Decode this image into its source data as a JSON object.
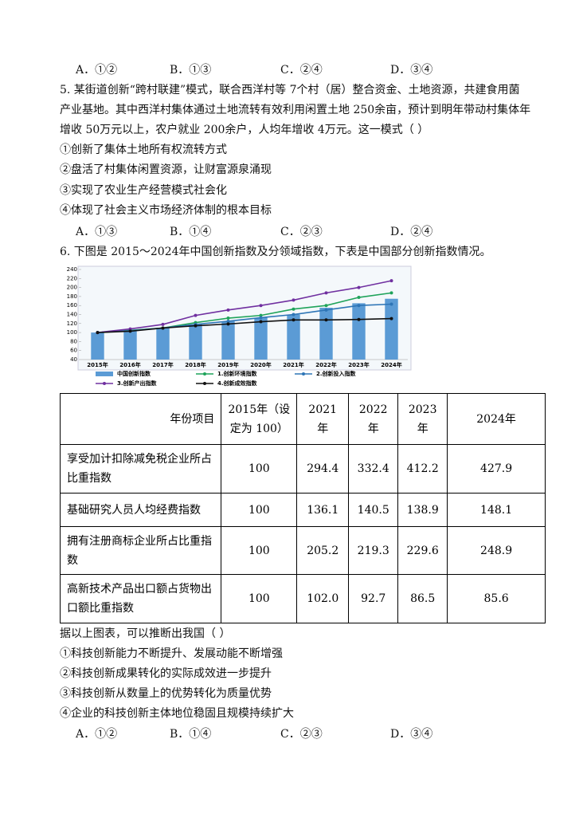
{
  "q4": {
    "options": [
      "A．①②",
      "B．①③",
      "C．②④",
      "D．③④"
    ]
  },
  "q5": {
    "stem_lines": [
      "5.  某街道创新“跨村联建”模式，联合西洋村等 7个村（居）整合资金、土地资源，共建食用菌",
      "产业基地。其中西洋村集体通过土地流转有效利用闲置土地 250余亩，预计到明年带动村集体年",
      "增收 50万元以上，农户就业 200余户，人均年增收 4万元。这一模式（   ）"
    ],
    "items": [
      "①创新了集体土地所有权流转方式",
      "②盘活了村集体闲置资源，让财富源泉涌现",
      "③实现了农业生产经营模式社会化",
      "④体现了社会主义市场经济体制的根本目标"
    ],
    "options": [
      "A．①③",
      "B．①④",
      "C．②③",
      "D．②④"
    ]
  },
  "q6": {
    "stem": "6.  下图是 2015～2024年中国创新指数及分领域指数，下表是中国部分创新指数情况。",
    "chart": {
      "type": "bar-line",
      "categories": [
        "2015年",
        "2016年",
        "2017年",
        "2018年",
        "2019年",
        "2020年",
        "2021年",
        "2022年",
        "2023年",
        "2024年"
      ],
      "ylim": [
        40,
        240
      ],
      "yticks": [
        40,
        60,
        80,
        100,
        120,
        140,
        160,
        180,
        200,
        220,
        240
      ],
      "series": [
        {
          "name": "中国创新指数",
          "kind": "bar",
          "color": "#5b9bd5",
          "values": [
            100,
            105,
            110,
            118,
            125,
            133,
            140,
            155,
            165,
            175
          ]
        },
        {
          "name": "1.创新环境指数",
          "kind": "line",
          "color": "#1fa35a",
          "values": [
            100,
            105,
            110,
            122,
            132,
            138,
            152,
            160,
            178,
            188
          ]
        },
        {
          "name": "2.创新投入指数",
          "kind": "line",
          "color": "#2e75b6",
          "values": [
            100,
            104,
            110,
            118,
            125,
            133,
            140,
            150,
            160,
            163
          ]
        },
        {
          "name": "3.创新产出指数",
          "kind": "line",
          "color": "#7030a0",
          "values": [
            100,
            108,
            118,
            138,
            150,
            160,
            172,
            188,
            200,
            215
          ]
        },
        {
          "name": "4.创新成效指数",
          "kind": "line",
          "color": "#111111",
          "values": [
            100,
            103,
            110,
            115,
            119,
            124,
            128,
            128,
            129,
            131
          ]
        }
      ]
    },
    "table": {
      "header": [
        "年份项目",
        "2015年（设定为 100）",
        "2021年",
        "2022年",
        "2023年",
        "2024年"
      ],
      "rows": [
        [
          "享受加计扣除减免税企业所占比重指数",
          "100",
          "294.4",
          "332.4",
          "412.2",
          "427.9"
        ],
        [
          "基础研究人员人均经费指数",
          "100",
          "136.1",
          "140.5",
          "138.9",
          "148.1"
        ],
        [
          "拥有注册商标企业所占比重指数",
          "100",
          "205.2",
          "219.3",
          "229.6",
          "248.9"
        ],
        [
          "高新技术产品出口额占货物出口额比重指数",
          "100",
          "102.0",
          "92.7",
          "86.5",
          "85.6"
        ]
      ]
    },
    "after": "据以上图表，可以推断出我国（   ）",
    "items": [
      "①科技创新能力不断提升、发展动能不断增强",
      "②科技创新成果转化的实际成效进一步提升",
      "③科技创新从数量上的优势转化为质量优势",
      "④企业的科技创新主体地位稳固且规模持续扩大"
    ],
    "options": [
      "A．①②",
      "B．①④",
      "C．②③",
      "D．③④"
    ]
  }
}
